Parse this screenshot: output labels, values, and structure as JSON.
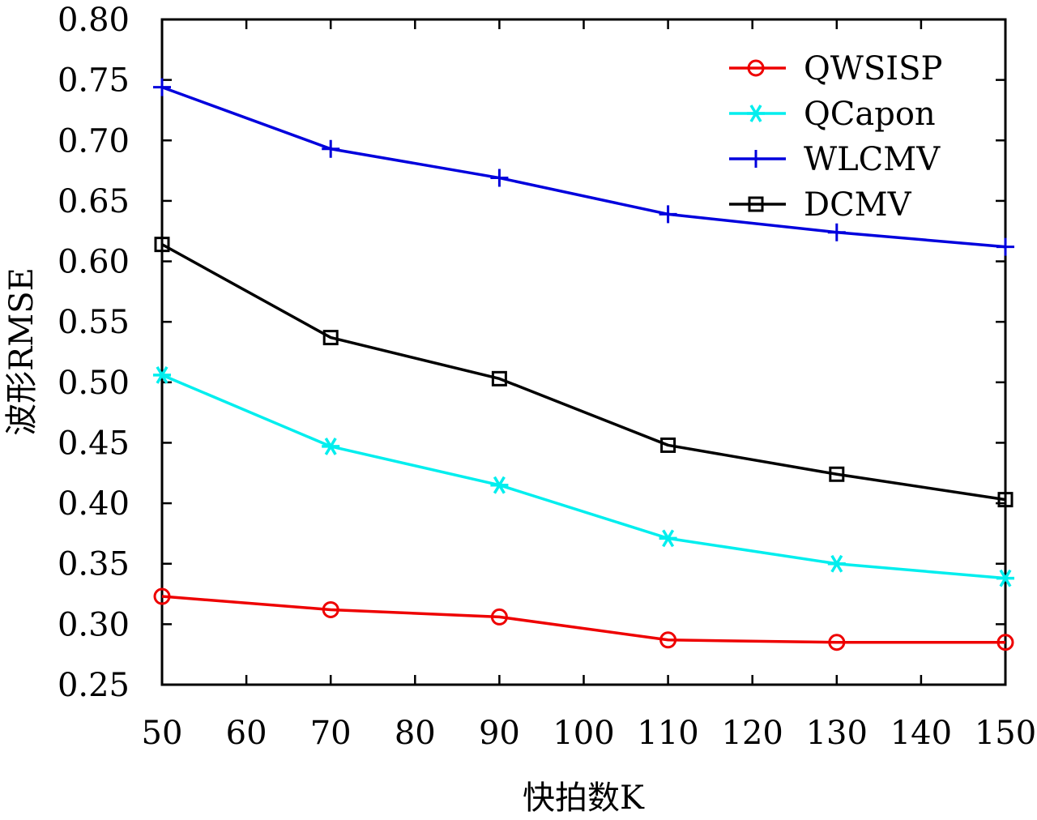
{
  "chart_data": {
    "type": "line",
    "title": "",
    "xlabel": "快拍数K",
    "ylabel": "波形RMSE",
    "x": [
      50,
      70,
      90,
      110,
      130,
      150
    ],
    "xlim": [
      50,
      150
    ],
    "ylim": [
      0.25,
      0.8
    ],
    "xticks": [
      50,
      60,
      70,
      80,
      90,
      100,
      110,
      120,
      130,
      140,
      150
    ],
    "xtick_labels": [
      "50",
      "60",
      "70",
      "80",
      "90",
      "100",
      "110",
      "120",
      "130",
      "140",
      "150"
    ],
    "yticks": [
      0.25,
      0.3,
      0.35,
      0.4,
      0.45,
      0.5,
      0.55,
      0.6,
      0.65,
      0.7,
      0.75,
      0.8
    ],
    "ytick_labels": [
      "0.25",
      "0.30",
      "0.35",
      "0.40",
      "0.45",
      "0.50",
      "0.55",
      "0.60",
      "0.65",
      "0.70",
      "0.75",
      "0.80"
    ],
    "grid": false,
    "legend_position": "top-right",
    "series": [
      {
        "name": "QWSISP",
        "color": "#ee0000",
        "marker": "circle",
        "values": [
          0.323,
          0.312,
          0.306,
          0.287,
          0.285,
          0.285
        ]
      },
      {
        "name": "QCapon",
        "color": "#00eeee",
        "marker": "asterisk",
        "values": [
          0.506,
          0.447,
          0.415,
          0.371,
          0.35,
          0.338
        ]
      },
      {
        "name": "WLCMV",
        "color": "#0000dd",
        "marker": "plus",
        "values": [
          0.744,
          0.693,
          0.669,
          0.639,
          0.624,
          0.612
        ]
      },
      {
        "name": "DCMV",
        "color": "#000000",
        "marker": "square",
        "values": [
          0.614,
          0.537,
          0.503,
          0.448,
          0.424,
          0.403
        ]
      }
    ]
  }
}
